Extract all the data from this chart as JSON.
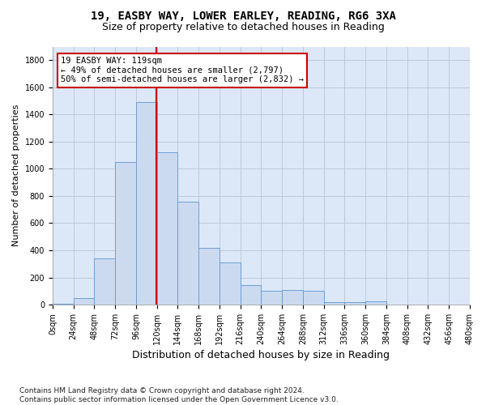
{
  "title1": "19, EASBY WAY, LOWER EARLEY, READING, RG6 3XA",
  "title2": "Size of property relative to detached houses in Reading",
  "xlabel": "Distribution of detached houses by size in Reading",
  "ylabel": "Number of detached properties",
  "footnote": "Contains HM Land Registry data © Crown copyright and database right 2024.\nContains public sector information licensed under the Open Government Licence v3.0.",
  "bin_edges": [
    0,
    24,
    48,
    72,
    96,
    120,
    144,
    168,
    192,
    216,
    240,
    264,
    288,
    312,
    336,
    360,
    384,
    408,
    432,
    456,
    480
  ],
  "bar_heights": [
    5,
    50,
    340,
    1050,
    1490,
    1120,
    760,
    420,
    310,
    145,
    100,
    105,
    100,
    20,
    20,
    25,
    0,
    0,
    0,
    0
  ],
  "bar_color": "#ccdaf0",
  "bar_edge_color": "#6a9fd8",
  "property_size": 119,
  "vline_color": "#cc0000",
  "annotation_text": "19 EASBY WAY: 119sqm\n← 49% of detached houses are smaller (2,797)\n50% of semi-detached houses are larger (2,832) →",
  "annotation_box_color": "#ffffff",
  "annotation_box_edge": "#cc0000",
  "ylim": [
    0,
    1900
  ],
  "yticks": [
    0,
    200,
    400,
    600,
    800,
    1000,
    1200,
    1400,
    1600,
    1800
  ],
  "bg_color": "#ffffff",
  "grid_color": "#c0c8d8",
  "plot_bg_color": "#dce8f8",
  "title1_fontsize": 10,
  "title2_fontsize": 9,
  "xlabel_fontsize": 9,
  "ylabel_fontsize": 8,
  "footnote_fontsize": 6.5,
  "tick_fontsize": 7
}
